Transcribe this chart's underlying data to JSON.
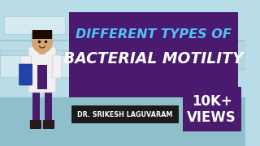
{
  "bg_color": "#b8dde8",
  "title_line1": "DIFFERENT TYPES OF",
  "title_line2": "BACTERIAL MOTILITY",
  "title_color_line1": "#4fc3f7",
  "title_color_line2": "#ffffff",
  "title_box_color": "#4a1a6e",
  "subtitle_text": "DR. SRIKESH LAGUVARAM",
  "subtitle_bg": "#1a1a1a",
  "subtitle_text_color": "#ffffff",
  "views_text_line1": "10K+",
  "views_text_line2": "VIEWS",
  "views_box_color": "#4a1a6e",
  "views_text_color": "#ffffff",
  "floor_color": "#90bfcc",
  "wall_color": "#c8e8f0",
  "counter_color": "#d0e8ee",
  "doctor_coat_color": "#f0f0f0",
  "doctor_pants_color": "#4a1a6e",
  "skin_color": "#d4a574",
  "hair_color": "#1a0a00",
  "shoe_color": "#2a1a1a",
  "clipboard_color": "#2244aa",
  "figsize": [
    3.2,
    1.8
  ],
  "dpi": 100
}
